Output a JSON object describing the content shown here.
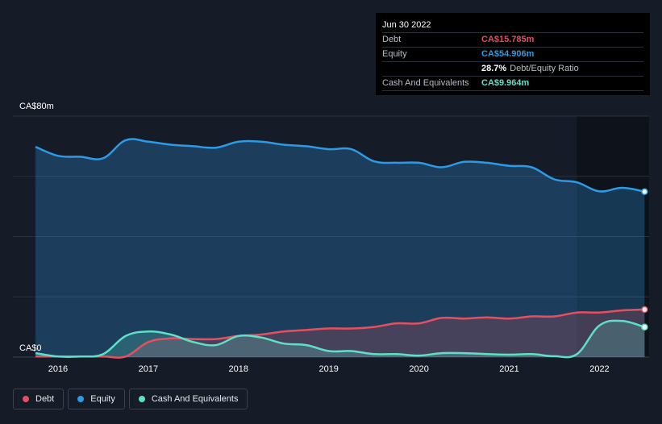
{
  "chart_data": {
    "type": "area",
    "ylim": [
      0,
      80
    ],
    "xlim": [
      2015.5,
      2022.55
    ],
    "y_axis_labels": {
      "top": "CA$80m",
      "bottom": "CA$0"
    },
    "x_ticks": [
      {
        "label": "2016",
        "value": 2016
      },
      {
        "label": "2017",
        "value": 2017
      },
      {
        "label": "2018",
        "value": 2018
      },
      {
        "label": "2019",
        "value": 2019
      },
      {
        "label": "2020",
        "value": 2020
      },
      {
        "label": "2021",
        "value": 2021
      },
      {
        "label": "2022",
        "value": 2022
      }
    ],
    "series": [
      {
        "name": "Equity",
        "color": "#2d9ae6",
        "points": [
          [
            2015.75,
            69.8
          ],
          [
            2016.0,
            66.8
          ],
          [
            2016.25,
            66.5
          ],
          [
            2016.5,
            66.0
          ],
          [
            2016.75,
            72.0
          ],
          [
            2017.0,
            71.5
          ],
          [
            2017.25,
            70.5
          ],
          [
            2017.5,
            70.0
          ],
          [
            2017.75,
            69.5
          ],
          [
            2018.0,
            71.5
          ],
          [
            2018.25,
            71.5
          ],
          [
            2018.5,
            70.5
          ],
          [
            2018.75,
            70.0
          ],
          [
            2019.0,
            69.0
          ],
          [
            2019.25,
            69.0
          ],
          [
            2019.5,
            65.0
          ],
          [
            2019.75,
            64.5
          ],
          [
            2020.0,
            64.5
          ],
          [
            2020.25,
            63.0
          ],
          [
            2020.5,
            64.8
          ],
          [
            2020.75,
            64.5
          ],
          [
            2021.0,
            63.5
          ],
          [
            2021.25,
            63.0
          ],
          [
            2021.5,
            59.0
          ],
          [
            2021.75,
            58.0
          ],
          [
            2022.0,
            55.0
          ],
          [
            2022.25,
            56.2
          ],
          [
            2022.5,
            54.906
          ]
        ]
      },
      {
        "name": "Debt",
        "color": "#e5505e",
        "points": [
          [
            2015.75,
            0.2
          ],
          [
            2016.0,
            0.2
          ],
          [
            2016.25,
            0.2
          ],
          [
            2016.5,
            0.2
          ],
          [
            2016.75,
            0.2
          ],
          [
            2017.0,
            5.0
          ],
          [
            2017.25,
            6.2
          ],
          [
            2017.5,
            6.0
          ],
          [
            2017.75,
            6.0
          ],
          [
            2018.0,
            7.0
          ],
          [
            2018.25,
            7.5
          ],
          [
            2018.5,
            8.5
          ],
          [
            2018.75,
            9.0
          ],
          [
            2019.0,
            9.5
          ],
          [
            2019.25,
            9.5
          ],
          [
            2019.5,
            10.0
          ],
          [
            2019.75,
            11.2
          ],
          [
            2020.0,
            11.2
          ],
          [
            2020.25,
            13.0
          ],
          [
            2020.5,
            12.8
          ],
          [
            2020.75,
            13.2
          ],
          [
            2021.0,
            12.8
          ],
          [
            2021.25,
            13.5
          ],
          [
            2021.5,
            13.5
          ],
          [
            2021.75,
            14.8
          ],
          [
            2022.0,
            14.8
          ],
          [
            2022.25,
            15.5
          ],
          [
            2022.5,
            15.785
          ]
        ]
      },
      {
        "name": "Cash And Equivalents",
        "color": "#5ee0c8",
        "points": [
          [
            2015.75,
            1.3
          ],
          [
            2016.0,
            0.2
          ],
          [
            2016.25,
            0.2
          ],
          [
            2016.5,
            1.0
          ],
          [
            2016.75,
            7.0
          ],
          [
            2017.0,
            8.5
          ],
          [
            2017.25,
            7.5
          ],
          [
            2017.5,
            5.0
          ],
          [
            2017.75,
            4.0
          ],
          [
            2018.0,
            7.0
          ],
          [
            2018.25,
            6.5
          ],
          [
            2018.5,
            4.5
          ],
          [
            2018.75,
            4.0
          ],
          [
            2019.0,
            2.0
          ],
          [
            2019.25,
            2.0
          ],
          [
            2019.5,
            1.0
          ],
          [
            2019.75,
            1.0
          ],
          [
            2020.0,
            0.5
          ],
          [
            2020.25,
            1.3
          ],
          [
            2020.5,
            1.3
          ],
          [
            2020.75,
            1.0
          ],
          [
            2021.0,
            0.8
          ],
          [
            2021.25,
            1.0
          ],
          [
            2021.5,
            0.3
          ],
          [
            2021.75,
            1.0
          ],
          [
            2022.0,
            10.5
          ],
          [
            2022.25,
            12.0
          ],
          [
            2022.5,
            9.964
          ]
        ]
      }
    ]
  },
  "tooltip": {
    "date": "Jun 30 2022",
    "debt_label": "Debt",
    "debt_value": "CA$15.785m",
    "equity_label": "Equity",
    "equity_value": "CA$54.906m",
    "ratio_value": "28.7%",
    "ratio_label": "Debt/Equity Ratio",
    "cash_label": "Cash And Equivalents",
    "cash_value": "CA$9.964m",
    "colors": {
      "debt": "#e5505e",
      "equity": "#2d9ae6",
      "cash": "#5ee0c8"
    }
  },
  "legend": [
    {
      "label": "Debt",
      "color": "#e5505e"
    },
    {
      "label": "Equity",
      "color": "#2d9ae6"
    },
    {
      "label": "Cash And Equivalents",
      "color": "#5ee0c8"
    }
  ]
}
